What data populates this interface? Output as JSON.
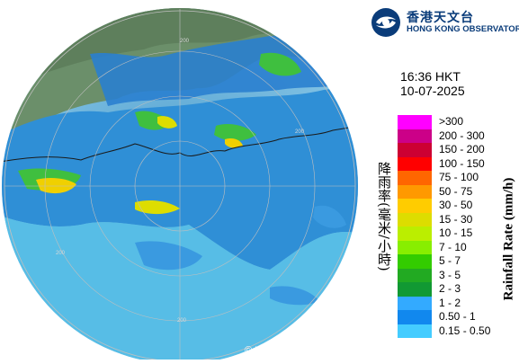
{
  "logo": {
    "icon": "hko-logo-icon",
    "name_cn": "香港天文台",
    "name_en": "HONG KONG OBSERVATORY"
  },
  "observation": {
    "time": "16:36 HKT",
    "date": "10-07-2025"
  },
  "legend": {
    "title_cn": "降雨率(毫米/小時)",
    "title_en": "Rainfall Rate (mm/h)",
    "items": [
      {
        "label": ">300",
        "color": "#ff00ff"
      },
      {
        "label": "200 - 300",
        "color": "#cc0088"
      },
      {
        "label": "150 - 200",
        "color": "#cc0033"
      },
      {
        "label": "100 - 150",
        "color": "#ff0000"
      },
      {
        "label": "75 - 100",
        "color": "#ff6600"
      },
      {
        "label": "50 - 75",
        "color": "#ff9900"
      },
      {
        "label": "30 - 50",
        "color": "#ffcc00"
      },
      {
        "label": "15 - 30",
        "color": "#dddd00"
      },
      {
        "label": "10 - 15",
        "color": "#bbee00"
      },
      {
        "label": "7 - 10",
        "color": "#88ee00"
      },
      {
        "label": "5 - 7",
        "color": "#33cc00"
      },
      {
        "label": "3 - 5",
        "color": "#22aa22"
      },
      {
        "label": "2 - 3",
        "color": "#119933"
      },
      {
        "label": "1 - 2",
        "color": "#33aaff"
      },
      {
        "label": "0.50 - 1",
        "color": "#1188ee"
      },
      {
        "label": "0.15 - 0.50",
        "color": "#44ccff"
      }
    ]
  },
  "map": {
    "range_ring_labels": [
      "200",
      "200",
      "200",
      "200"
    ],
    "copyright": "© Hong Kong Observatory"
  }
}
